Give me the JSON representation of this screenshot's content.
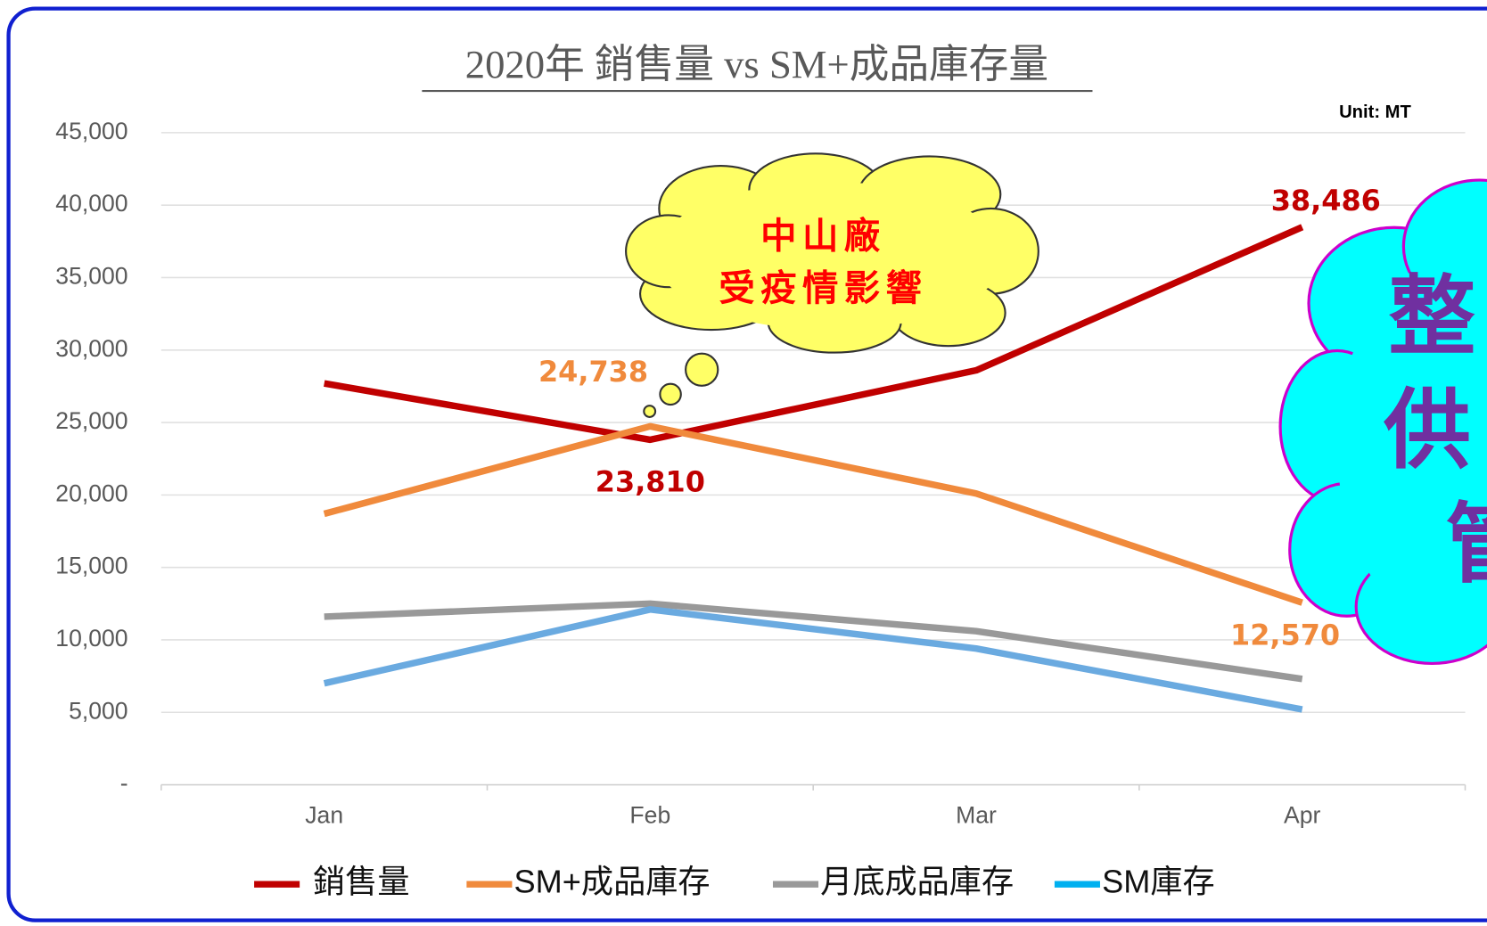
{
  "chart_data": {
    "type": "line",
    "title": "2020年 銷售量 vs SM+成品庫存量",
    "unit_note": "Unit: MT",
    "categories": [
      "Jan",
      "Feb",
      "Mar",
      "Apr"
    ],
    "series": [
      {
        "name": "銷售量",
        "color": "#c00000",
        "values": [
          27700,
          23810,
          28600,
          38486
        ],
        "value_labels": [
          null,
          "23,810",
          null,
          "38,486"
        ]
      },
      {
        "name": "SM+成品庫存",
        "color": "#f08a3c",
        "values": [
          18700,
          24738,
          20100,
          12570
        ],
        "value_labels": [
          null,
          "24,738",
          null,
          "12,570"
        ]
      },
      {
        "name": "月底成品庫存",
        "color": "#999999",
        "values": [
          11600,
          12500,
          10600,
          7300
        ]
      },
      {
        "name": "SM庫存",
        "color": "#6aaae0",
        "values": [
          7000,
          12100,
          9400,
          5200
        ]
      }
    ],
    "ylim": [
      0,
      45000
    ],
    "yticks": [
      {
        "value": 0,
        "label": "-"
      },
      {
        "value": 5000,
        "label": "5,000"
      },
      {
        "value": 10000,
        "label": "10,000"
      },
      {
        "value": 15000,
        "label": "15,000"
      },
      {
        "value": 20000,
        "label": "20,000"
      },
      {
        "value": 25000,
        "label": "25,000"
      },
      {
        "value": 30000,
        "label": "30,000"
      },
      {
        "value": 35000,
        "label": "35,000"
      },
      {
        "value": 40000,
        "label": "40,000"
      },
      {
        "value": 45000,
        "label": "45,000"
      }
    ],
    "grid": true,
    "callouts": [
      {
        "lines": [
          "中山廠",
          "受疫情影響"
        ]
      },
      {
        "lines": [
          "整",
          "供",
          "管"
        ]
      }
    ]
  }
}
